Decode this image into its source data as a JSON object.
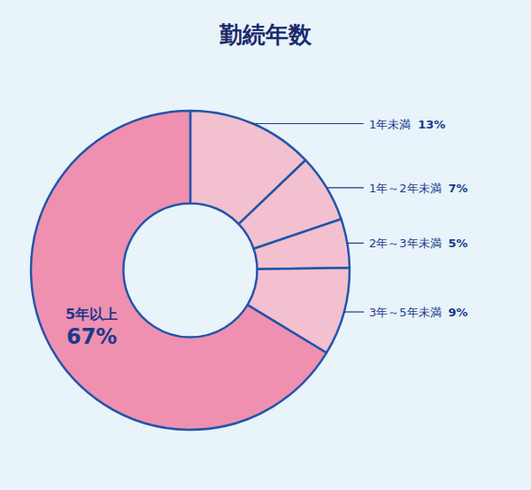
{
  "chart_data": {
    "type": "pie",
    "title": "勤続年数",
    "categories": [
      "1年未満",
      "1年～2年未満",
      "2年～3年未満",
      "3年～5年未満",
      "5年以上"
    ],
    "values": [
      13,
      7,
      5,
      9,
      67
    ],
    "value_labels": [
      "13%",
      "7%",
      "5%",
      "9%",
      "67%"
    ],
    "colors": [
      "#f2c0cf",
      "#f2c0cf",
      "#f2c0cf",
      "#f2c0cf",
      "#f090b0"
    ],
    "data_labels": true
  }
}
